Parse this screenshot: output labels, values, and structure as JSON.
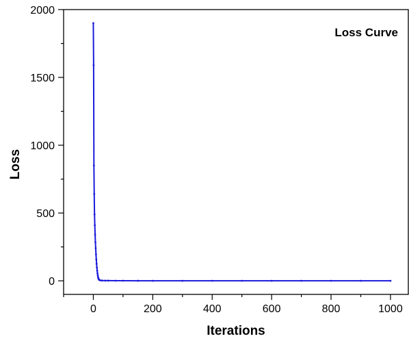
{
  "chart_data": {
    "type": "line",
    "annotation": "Loss Curve",
    "xlabel": "Iterations",
    "ylabel": "Loss",
    "xlim": [
      -100,
      1060
    ],
    "ylim": [
      -100,
      2000
    ],
    "x_ticks": [
      0,
      200,
      400,
      600,
      800,
      1000
    ],
    "y_ticks": [
      0,
      500,
      1000,
      1500,
      2000
    ],
    "grid": false,
    "line_color": "#1a1adc",
    "series": [
      {
        "x": [
          0,
          1,
          2,
          3,
          4,
          5,
          6,
          7,
          8,
          9,
          10,
          11,
          12,
          13,
          14,
          15,
          16,
          17,
          18,
          19,
          20,
          25,
          30,
          40,
          50,
          75,
          100,
          150,
          200,
          300,
          400,
          500,
          600,
          700,
          800,
          900,
          1000
        ],
        "values": [
          1900,
          1590,
          850,
          640,
          490,
          410,
          340,
          285,
          240,
          195,
          158,
          125,
          98,
          75,
          55,
          40,
          28,
          19,
          13,
          9,
          6,
          3,
          2.2,
          1.6,
          1.3,
          1.0,
          0.8,
          0.6,
          0.5,
          0.4,
          0.35,
          0.3,
          0.28,
          0.26,
          0.24,
          0.22,
          0.2
        ]
      }
    ]
  }
}
